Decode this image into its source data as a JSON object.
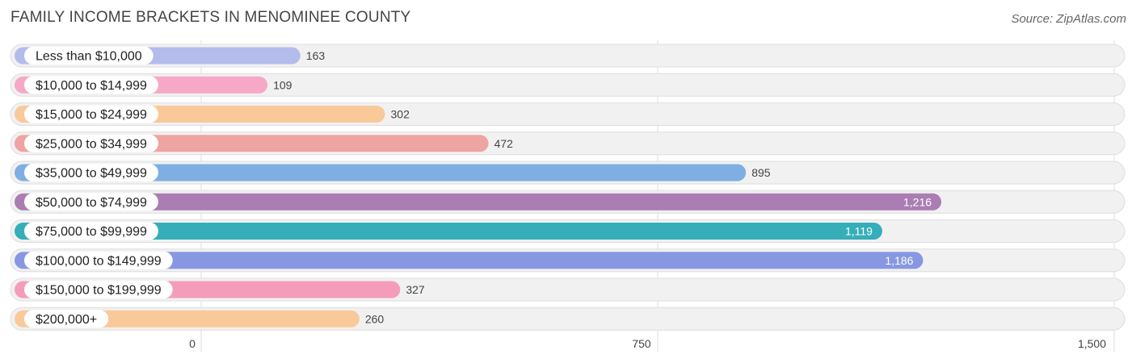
{
  "header": {
    "title": "FAMILY INCOME BRACKETS IN MENOMINEE COUNTY",
    "source": "Source: ZipAtlas.com"
  },
  "chart_data": {
    "type": "bar",
    "orientation": "horizontal",
    "categories": [
      "Less than $10,000",
      "$10,000 to $14,999",
      "$15,000 to $24,999",
      "$25,000 to $34,999",
      "$35,000 to $49,999",
      "$50,000 to $74,999",
      "$75,000 to $99,999",
      "$100,000 to $149,999",
      "$150,000 to $199,999",
      "$200,000+"
    ],
    "values": [
      163,
      109,
      302,
      472,
      895,
      1216,
      1119,
      1186,
      327,
      260
    ],
    "value_labels": [
      "163",
      "109",
      "302",
      "472",
      "895",
      "1,216",
      "1,119",
      "1,186",
      "327",
      "260"
    ],
    "colors": [
      "#b4bcec",
      "#f6a9c6",
      "#f9c99a",
      "#eda4a2",
      "#7eaee2",
      "#aa7db3",
      "#35aeb9",
      "#8797e2",
      "#f59cba",
      "#f9c99a"
    ],
    "xlim": [
      0,
      1500
    ],
    "ticks": [
      0,
      750,
      1500
    ],
    "tick_labels": [
      "0",
      "750",
      "1,500"
    ],
    "grid": true
  }
}
